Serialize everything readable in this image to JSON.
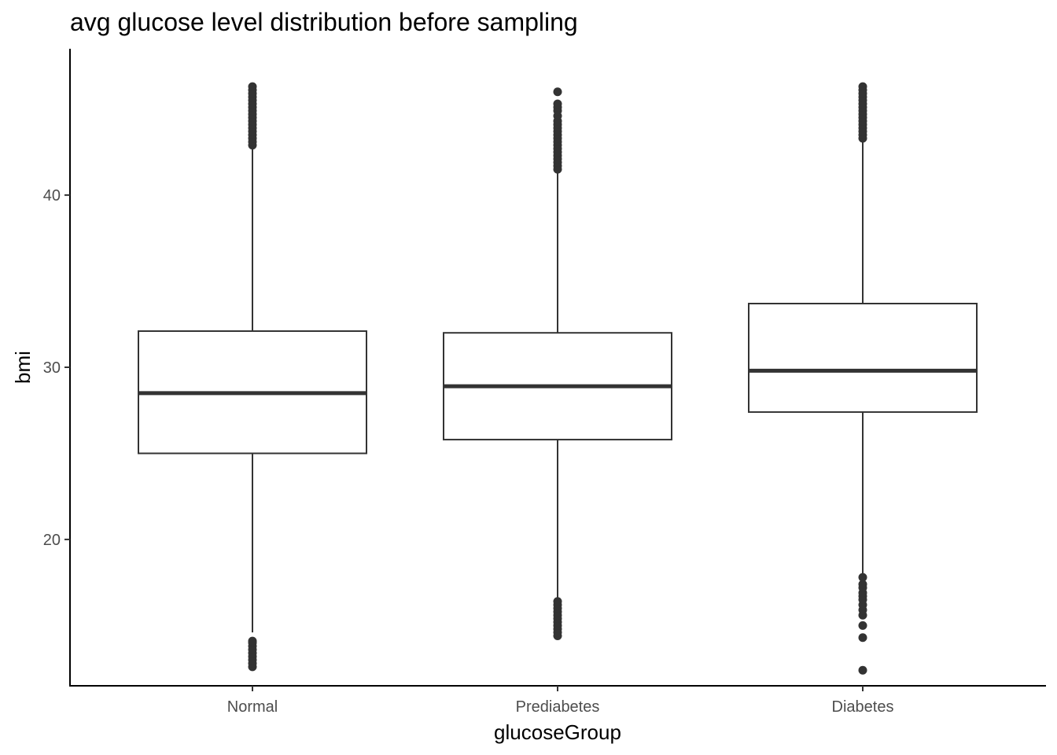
{
  "chart_data": {
    "type": "box",
    "title": "avg glucose level distribution before sampling",
    "xlabel": "glucoseGroup",
    "ylabel": "bmi",
    "ylim": [
      11.5,
      48.5
    ],
    "yticks": [
      20,
      30,
      40
    ],
    "grid": false,
    "legend": "none",
    "categories": [
      "Normal",
      "Prediabetes",
      "Diabetes"
    ],
    "boxes": [
      {
        "category": "Normal",
        "whisker_low": 14.6,
        "q1": 25.0,
        "median": 28.5,
        "q3": 32.1,
        "whisker_high": 42.8,
        "outliers": [
          12.6,
          12.8,
          13.0,
          13.2,
          13.4,
          13.6,
          13.8,
          14.0,
          14.1,
          42.9,
          43.1,
          43.3,
          43.5,
          43.7,
          43.9,
          44.1,
          44.3,
          44.5,
          44.7,
          44.9,
          45.1,
          45.3,
          45.5,
          45.7,
          45.9,
          46.1,
          46.3
        ]
      },
      {
        "category": "Prediabetes",
        "whisker_low": 16.6,
        "q1": 25.8,
        "median": 28.9,
        "q3": 32.0,
        "whisker_high": 41.4,
        "outliers": [
          14.4,
          14.6,
          14.8,
          15.0,
          15.2,
          15.4,
          15.6,
          15.8,
          16.0,
          16.2,
          16.4,
          41.5,
          41.7,
          41.9,
          42.1,
          42.3,
          42.5,
          42.7,
          42.9,
          43.1,
          43.3,
          43.5,
          43.7,
          43.9,
          44.1,
          44.3,
          44.6,
          44.9,
          45.1,
          45.3,
          46.0
        ]
      },
      {
        "category": "Diabetes",
        "whisker_low": 17.9,
        "q1": 27.4,
        "median": 29.8,
        "q3": 33.7,
        "whisker_high": 43.2,
        "outliers": [
          12.4,
          14.3,
          15.0,
          15.6,
          15.9,
          16.2,
          16.5,
          16.7,
          16.9,
          17.2,
          17.4,
          17.8,
          43.3,
          43.5,
          43.7,
          43.9,
          44.1,
          44.3,
          44.5,
          44.7,
          44.9,
          45.1,
          45.3,
          45.5,
          45.7,
          45.9,
          46.1,
          46.3
        ]
      }
    ]
  },
  "colors": {
    "box_line": "#333333",
    "axis": "#000000",
    "tick_text": "#4d4d4d",
    "background": "#ffffff"
  }
}
